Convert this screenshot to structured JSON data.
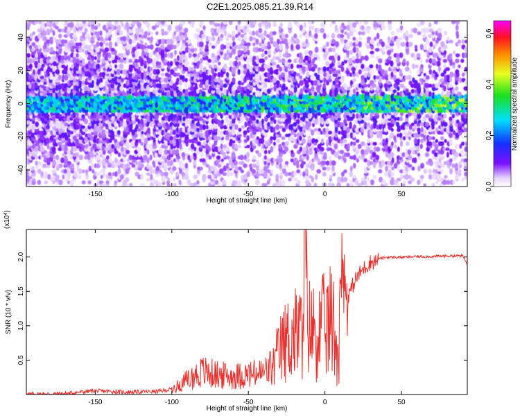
{
  "figure": {
    "title": "C2E1.2025.085.21.39.R14"
  },
  "chart_data": [
    {
      "type": "heatmap",
      "name": "spectrogram",
      "xlabel": "Height of straight line (km)",
      "ylabel": "Frequency (Hz)",
      "xlim": [
        -195,
        93
      ],
      "ylim": [
        -50,
        50
      ],
      "x_ticks": [
        -150,
        -100,
        -50,
        0,
        50
      ],
      "y_ticks": [
        -40,
        -20,
        0,
        20,
        40
      ],
      "grid": false,
      "colorbar": {
        "label": "Normalized spectral amplitude",
        "range": [
          0.0,
          0.65
        ],
        "ticks": [
          0.0,
          0.2,
          0.4,
          0.6
        ],
        "tick_labels": [
          "0.0",
          "0.2",
          "0.4",
          "0.6"
        ],
        "colormap": "rainbow (white-violet-blue-cyan-green-yellow-red-magenta)"
      },
      "description_of_values": {
        "carrier_frequency_hz": 0,
        "carrier_peak_amplitude_range": [
          0.15,
          0.45
        ],
        "carrier_band_width_hz": [
          -5,
          5
        ],
        "background_amplitude_range": [
          0.02,
          0.15
        ]
      }
    },
    {
      "type": "line",
      "name": "snr",
      "xlabel": "Height of straight line (km)",
      "ylabel": "SNR (10 * v/v)",
      "y_multiplier_label": "(x10",
      "y_multiplier_exp": "4",
      "y_multiplier_close": ")",
      "xlim": [
        -195,
        93
      ],
      "ylim": [
        0,
        2.4
      ],
      "x_ticks": [
        -150,
        -100,
        -50,
        0,
        50
      ],
      "y_ticks": [
        0.5,
        1.0,
        1.5,
        2.0
      ],
      "y_tick_labels": [
        "0.5",
        "1.0",
        "1.5",
        "2.0"
      ],
      "grid": false,
      "color": "#e8302c",
      "series": [
        {
          "x": [
            -195,
            -170,
            -150,
            -130,
            -110,
            -100,
            -90,
            -80,
            -70,
            -60,
            -50,
            -40,
            -35,
            -30,
            -25,
            -20,
            -15,
            -13,
            -10,
            -5,
            0,
            5,
            9,
            10,
            15,
            20,
            25,
            30,
            40,
            50,
            60,
            70,
            80,
            90,
            93
          ],
          "y": [
            0.01,
            0.02,
            0.06,
            0.04,
            0.05,
            0.08,
            0.22,
            0.35,
            0.3,
            0.28,
            0.3,
            0.33,
            0.42,
            0.75,
            0.95,
            1.05,
            1.1,
            2.4,
            1.15,
            1.1,
            1.2,
            1.3,
            0.65,
            2.15,
            1.45,
            1.7,
            1.85,
            1.95,
            2.0,
            2.0,
            2.01,
            2.01,
            2.02,
            2.02,
            1.9
          ]
        }
      ]
    }
  ]
}
